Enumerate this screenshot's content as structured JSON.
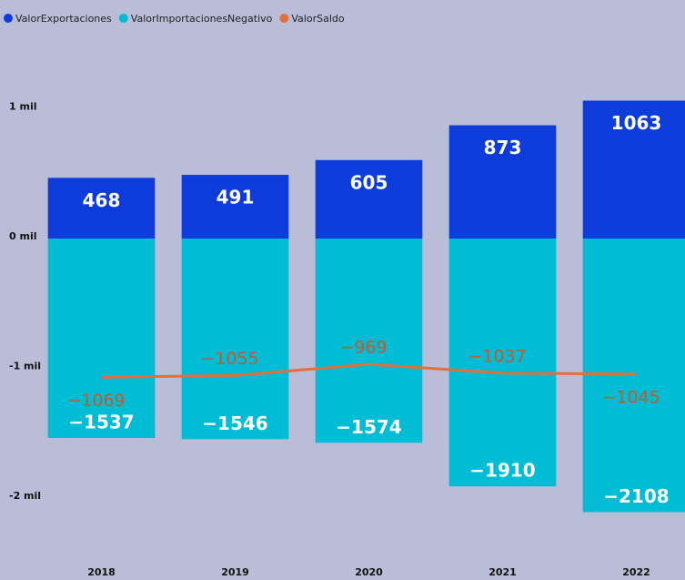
{
  "chart_data": {
    "type": "bar",
    "categories": [
      "2018",
      "2019",
      "2020",
      "2021",
      "2022"
    ],
    "series": [
      {
        "name": "ValorExportaciones",
        "color": "#0d3cdb",
        "values": [
          468,
          491,
          605,
          873,
          1063
        ]
      },
      {
        "name": "ValorImportacionesNegativo",
        "color": "#00bcd4",
        "values": [
          -1537,
          -1546,
          -1574,
          -1910,
          -2108
        ],
        "value_labels": [
          "−1537",
          "−1546",
          "−1574",
          "−1910",
          "−2108"
        ]
      },
      {
        "name": "ValorSaldo",
        "type": "line",
        "color": "#e0703c",
        "values": [
          -1069,
          -1055,
          -969,
          -1037,
          -1045
        ],
        "value_labels": [
          "−1069",
          "−1055",
          "−969",
          "−1037",
          "−1045"
        ]
      }
    ],
    "ylim": [
      -2300,
      1400
    ],
    "yticks": [
      {
        "value": 1000,
        "label": "1 mil"
      },
      {
        "value": 0,
        "label": "0 mil"
      },
      {
        "value": -1000,
        "label": "-1 mil"
      },
      {
        "value": -2000,
        "label": "-2 mil"
      }
    ]
  }
}
